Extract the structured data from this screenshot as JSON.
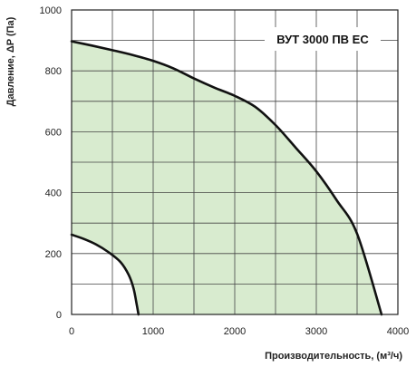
{
  "chart_data": {
    "type": "area",
    "title": "ВУТ 3000 ПВ ЕС",
    "xlabel": "Производительность, (м³/ч)",
    "ylabel": "Давление, ΔP (Па)",
    "xlim": [
      0,
      4000
    ],
    "ylim": [
      0,
      1000
    ],
    "x_ticks": [
      "0",
      "1000",
      "2000",
      "3000",
      "4000"
    ],
    "y_ticks": [
      "0",
      "200",
      "400",
      "600",
      "800",
      "1000"
    ],
    "grid": true,
    "fill_color": "#d8ebcf",
    "line_color": "#111111",
    "series": [
      {
        "role": "max",
        "x": [
          0,
          250,
          500,
          750,
          1000,
          1250,
          1500,
          1750,
          2000,
          2250,
          2500,
          2750,
          3000,
          3250,
          3500,
          3800
        ],
        "y": [
          897,
          883,
          868,
          852,
          833,
          808,
          775,
          745,
          718,
          682,
          622,
          547,
          470,
          375,
          265,
          0
        ]
      },
      {
        "role": "min",
        "x": [
          0,
          150,
          300,
          450,
          600,
          700,
          760,
          800,
          820
        ],
        "y": [
          262,
          248,
          230,
          205,
          172,
          130,
          85,
          30,
          0
        ]
      }
    ]
  }
}
